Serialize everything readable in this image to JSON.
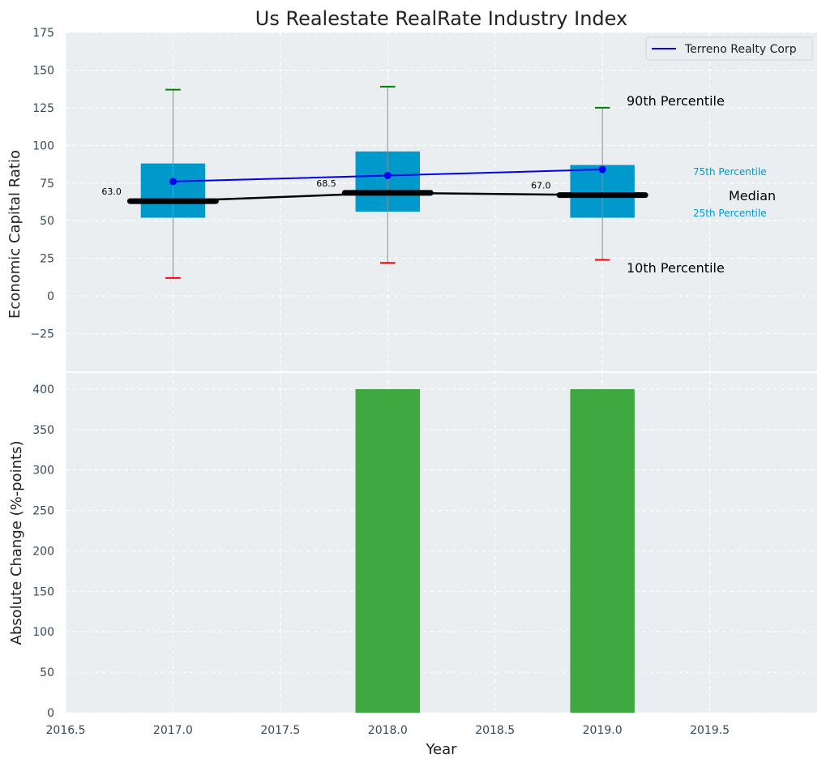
{
  "chart_data": [
    {
      "panel": "top",
      "type": "box",
      "title": "Us Realestate RealRate Industry Index",
      "xlabel": "",
      "ylabel": "Economic Capital Ratio",
      "ylim": [
        -50,
        175
      ],
      "yticks": [
        -25,
        0,
        25,
        50,
        75,
        100,
        125,
        150,
        175
      ],
      "ytick_labels": [
        "−25",
        "0",
        "25",
        "50",
        "75",
        "100",
        "125",
        "150",
        "175"
      ],
      "xlim": [
        2016.5,
        2020.0
      ],
      "grid": true,
      "boxes": [
        {
          "x": 2017,
          "p10": 12,
          "p25": 52,
          "median": 63.0,
          "p75": 88,
          "p90": 137,
          "median_label": "63.0"
        },
        {
          "x": 2018,
          "p10": 22,
          "p25": 56,
          "median": 68.5,
          "p75": 96,
          "p90": 139,
          "median_label": "68.5"
        },
        {
          "x": 2019,
          "p10": 24,
          "p25": 52,
          "median": 67.0,
          "p75": 87,
          "p90": 125,
          "median_label": "67.0"
        }
      ],
      "series": [
        {
          "name": "Terreno Realty Corp",
          "x": [
            2017,
            2018,
            2019
          ],
          "values": [
            76,
            80,
            84
          ]
        }
      ],
      "legend": {
        "placement": "top-right",
        "entries": [
          "Terreno Realty Corp"
        ]
      },
      "annotations": {
        "p90": "90th Percentile",
        "p75": "75th Percentile",
        "median": "Median",
        "p25": "25th Percentile",
        "p10": "10th Percentile"
      },
      "colors": {
        "box": "#0099cc",
        "whisker_top": "#008000",
        "whisker_bottom": "#ff0000",
        "median": "#000000",
        "series": "#0000ee",
        "background": "#eaeef0",
        "axis_text": "#34495e"
      }
    },
    {
      "panel": "bottom",
      "type": "bar",
      "xlabel": "Year",
      "ylabel": "Absolute Change (%-points)",
      "ylim": [
        0,
        420
      ],
      "yticks": [
        0,
        50,
        100,
        150,
        200,
        250,
        300,
        350,
        400
      ],
      "xlim": [
        2016.5,
        2020.0
      ],
      "xticks": [
        2016.5,
        2017.0,
        2017.5,
        2018.0,
        2018.5,
        2019.0,
        2019.5
      ],
      "xtick_labels": [
        "2016.5",
        "2017.0",
        "2017.5",
        "2018.0",
        "2018.5",
        "2019.0",
        "2019.5"
      ],
      "grid": true,
      "x": [
        2018,
        2019
      ],
      "values": [
        400,
        400
      ],
      "bar_width": 0.3,
      "colors": {
        "bar": "#2ca02c"
      }
    }
  ]
}
